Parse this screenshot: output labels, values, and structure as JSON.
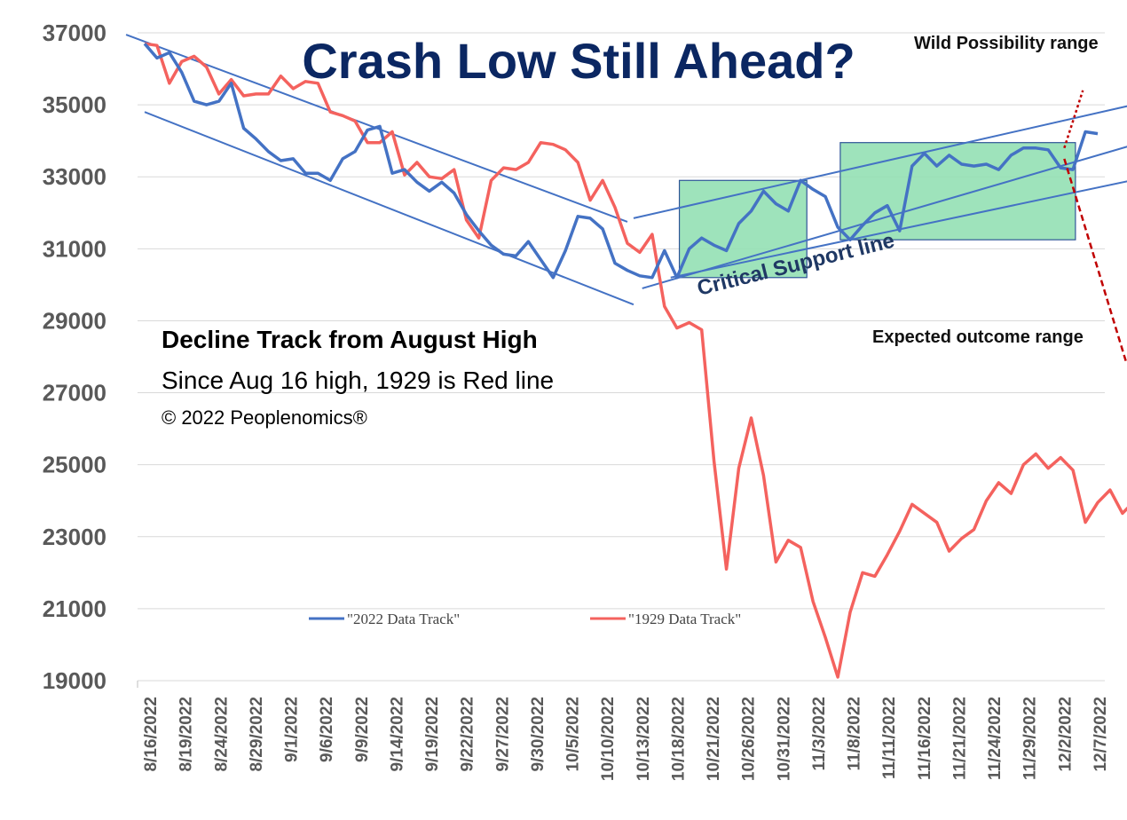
{
  "chart_data": {
    "type": "line",
    "title": "Crash Low Still Ahead?",
    "subtitle_lines": [
      "Decline Track from August High",
      "Since Aug 16 high, 1929 is Red line",
      "© 2022 Peoplenomics®"
    ],
    "annotations": {
      "wild": "Wild Possibility range",
      "expected": "Expected outcome range",
      "support": "Critical Support line"
    },
    "ylim": [
      19000,
      37000
    ],
    "yticks": [
      37000,
      35000,
      33000,
      31000,
      29000,
      27000,
      25000,
      23000,
      21000,
      19000
    ],
    "ytick_labels": [
      "37000",
      "35000",
      "33000",
      "31000",
      "29000",
      "27000",
      "25000",
      "23000",
      "21000",
      "19000"
    ],
    "xtick_labels": [
      "8/16/2022",
      "8/19/2022",
      "8/24/2022",
      "8/29/2022",
      "9/1/2022",
      "9/6/2022",
      "9/9/2022",
      "9/14/2022",
      "9/19/2022",
      "9/22/2022",
      "9/27/2022",
      "9/30/2022",
      "10/5/2022",
      "10/10/2022",
      "10/13/2022",
      "10/18/2022",
      "10/21/2022",
      "10/26/2022",
      "10/31/2022",
      "11/3/2022",
      "11/8/2022",
      "11/11/2022",
      "11/16/2022",
      "11/21/2022",
      "11/24/2022",
      "11/29/2022",
      "12/2/2022",
      "12/7/2022"
    ],
    "n_points": 78,
    "series": [
      {
        "name": "\"2022 Data Track\"",
        "color": "#4472c4",
        "values": [
          36700,
          36300,
          36450,
          35900,
          35100,
          35000,
          35100,
          35600,
          34350,
          34050,
          33700,
          33450,
          33500,
          33100,
          33100,
          32900,
          33500,
          33700,
          34300,
          34400,
          33100,
          33200,
          32850,
          32600,
          32850,
          32550,
          31950,
          31500,
          31100,
          30850,
          30800,
          31200,
          30700,
          30200,
          30950,
          31900,
          31850,
          31550,
          30600,
          30400,
          30250,
          30200,
          30950,
          30200,
          31000,
          31300,
          31100,
          30950,
          31700,
          32050,
          32600,
          32250,
          32050,
          32900,
          32650,
          32450,
          31600,
          31250,
          31650,
          32000,
          32200,
          31500,
          33300,
          33650,
          33300,
          33600,
          33350,
          33300,
          33350,
          33200,
          33600,
          33800,
          33800,
          33750,
          33250,
          33200,
          34250,
          34200
        ]
      },
      {
        "name": "\"1929 Data Track\"",
        "color": "#f4625e",
        "values": [
          36700,
          36650,
          35600,
          36200,
          36350,
          36050,
          35300,
          35700,
          35250,
          35300,
          35300,
          35800,
          35450,
          35650,
          35600,
          34800,
          34700,
          34550,
          33950,
          33950,
          34250,
          33050,
          33400,
          33000,
          32950,
          33200,
          31800,
          31300,
          32900,
          33250,
          33200,
          33400,
          33950,
          33900,
          33750,
          33400,
          32350,
          32900,
          32150,
          31150,
          30900,
          31400,
          29400,
          28800,
          28950,
          28750,
          25100,
          22100,
          24900,
          26300,
          24700,
          22300,
          22900,
          22700,
          21200,
          20200,
          19100,
          20900,
          22000,
          21900,
          22500,
          23150,
          23900,
          23650,
          23400,
          22600,
          22950,
          23200,
          24000,
          24500,
          24200,
          25000,
          25300,
          24900,
          25200,
          24850,
          23400,
          23950,
          24300,
          23650,
          24000,
          23750
        ]
      }
    ]
  }
}
